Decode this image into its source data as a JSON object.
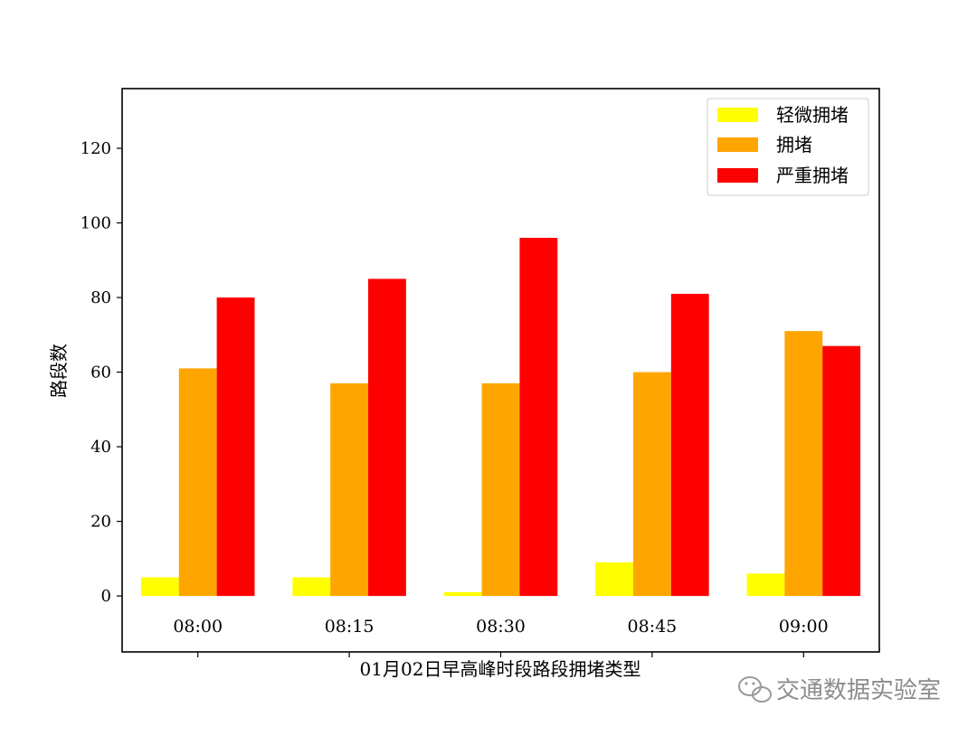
{
  "chart_data": {
    "type": "bar",
    "title": "",
    "xlabel": "01月02日早高峰时段路段拥堵类型",
    "ylabel": "路段数",
    "categories": [
      "08:00",
      "08:15",
      "08:30",
      "08:45",
      "09:00"
    ],
    "series": [
      {
        "name": "轻微拥堵",
        "color": "#ffff00",
        "values": [
          5,
          5,
          1,
          9,
          6
        ]
      },
      {
        "name": "拥堵",
        "color": "#ffa500",
        "values": [
          61,
          57,
          57,
          60,
          71
        ]
      },
      {
        "name": "严重拥堵",
        "color": "#ff0000",
        "values": [
          80,
          85,
          96,
          81,
          67
        ]
      }
    ],
    "ylim": [
      -15,
      136
    ],
    "yticks": [
      0,
      20,
      40,
      60,
      80,
      100,
      120
    ],
    "grid": false,
    "legend_position": "top-right"
  },
  "watermark": {
    "icon": "wechat-icon",
    "text": "交通数据实验室"
  }
}
